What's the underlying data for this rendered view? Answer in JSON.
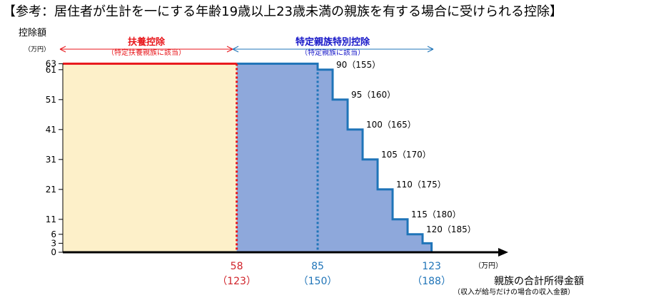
{
  "title": "【参考：居住者が生計を一にする年齢19歳以上23歳未満の親族を有する場合に受けられる控除】",
  "chart_data": {
    "type": "area",
    "ylabel": "控除額",
    "y_unit": "（万円）",
    "xlabel": "親族の合計所得金額",
    "xlabel_note": "（収入が給与だけの場合の収入金額）",
    "x_unit": "（万円）",
    "yticks": [
      0,
      3,
      6,
      11,
      21,
      31,
      41,
      51,
      61,
      63
    ],
    "regions": [
      {
        "name": "扶養控除",
        "note": "（特定扶養親族に該当）",
        "color": "#e8161b",
        "fill": "#fdf0c9",
        "x_range": [
          0,
          58
        ]
      },
      {
        "name": "特定親族特別控除",
        "note": "（特定親族に該当）",
        "color": "#1616c8",
        "fill": "#8ea8db",
        "x_range": [
          58,
          123
        ]
      }
    ],
    "x_markers": [
      {
        "value": "58",
        "sub": "（123）",
        "color": "#d0232a"
      },
      {
        "value": "85",
        "sub": "（150）",
        "color": "#1f74b8"
      },
      {
        "value": "123",
        "sub": "（188）",
        "color": "#1f74b8"
      }
    ],
    "steps": [
      {
        "x": [
          0,
          58
        ],
        "y": 63
      },
      {
        "x": [
          58,
          85
        ],
        "y": 63
      },
      {
        "x": [
          85,
          90
        ],
        "y": 61
      },
      {
        "x": [
          90,
          95
        ],
        "y": 51
      },
      {
        "x": [
          95,
          100
        ],
        "y": 41
      },
      {
        "x": [
          100,
          105
        ],
        "y": 31
      },
      {
        "x": [
          105,
          110
        ],
        "y": 21
      },
      {
        "x": [
          110,
          115
        ],
        "y": 11
      },
      {
        "x": [
          115,
          120
        ],
        "y": 6
      },
      {
        "x": [
          120,
          123
        ],
        "y": 3
      },
      {
        "x": [
          123,
          129
        ],
        "y": 0
      }
    ],
    "step_labels": [
      "90（155）",
      "95（160）",
      "100（165）",
      "105（170）",
      "110（175）",
      "115（180）",
      "120（185）"
    ]
  },
  "colors": {
    "red_line": "#e8161b",
    "blue_line": "#1f74b8",
    "yellow_fill": "#fdf0c9",
    "blue_fill": "#8ea8db",
    "axis": "#000000"
  }
}
